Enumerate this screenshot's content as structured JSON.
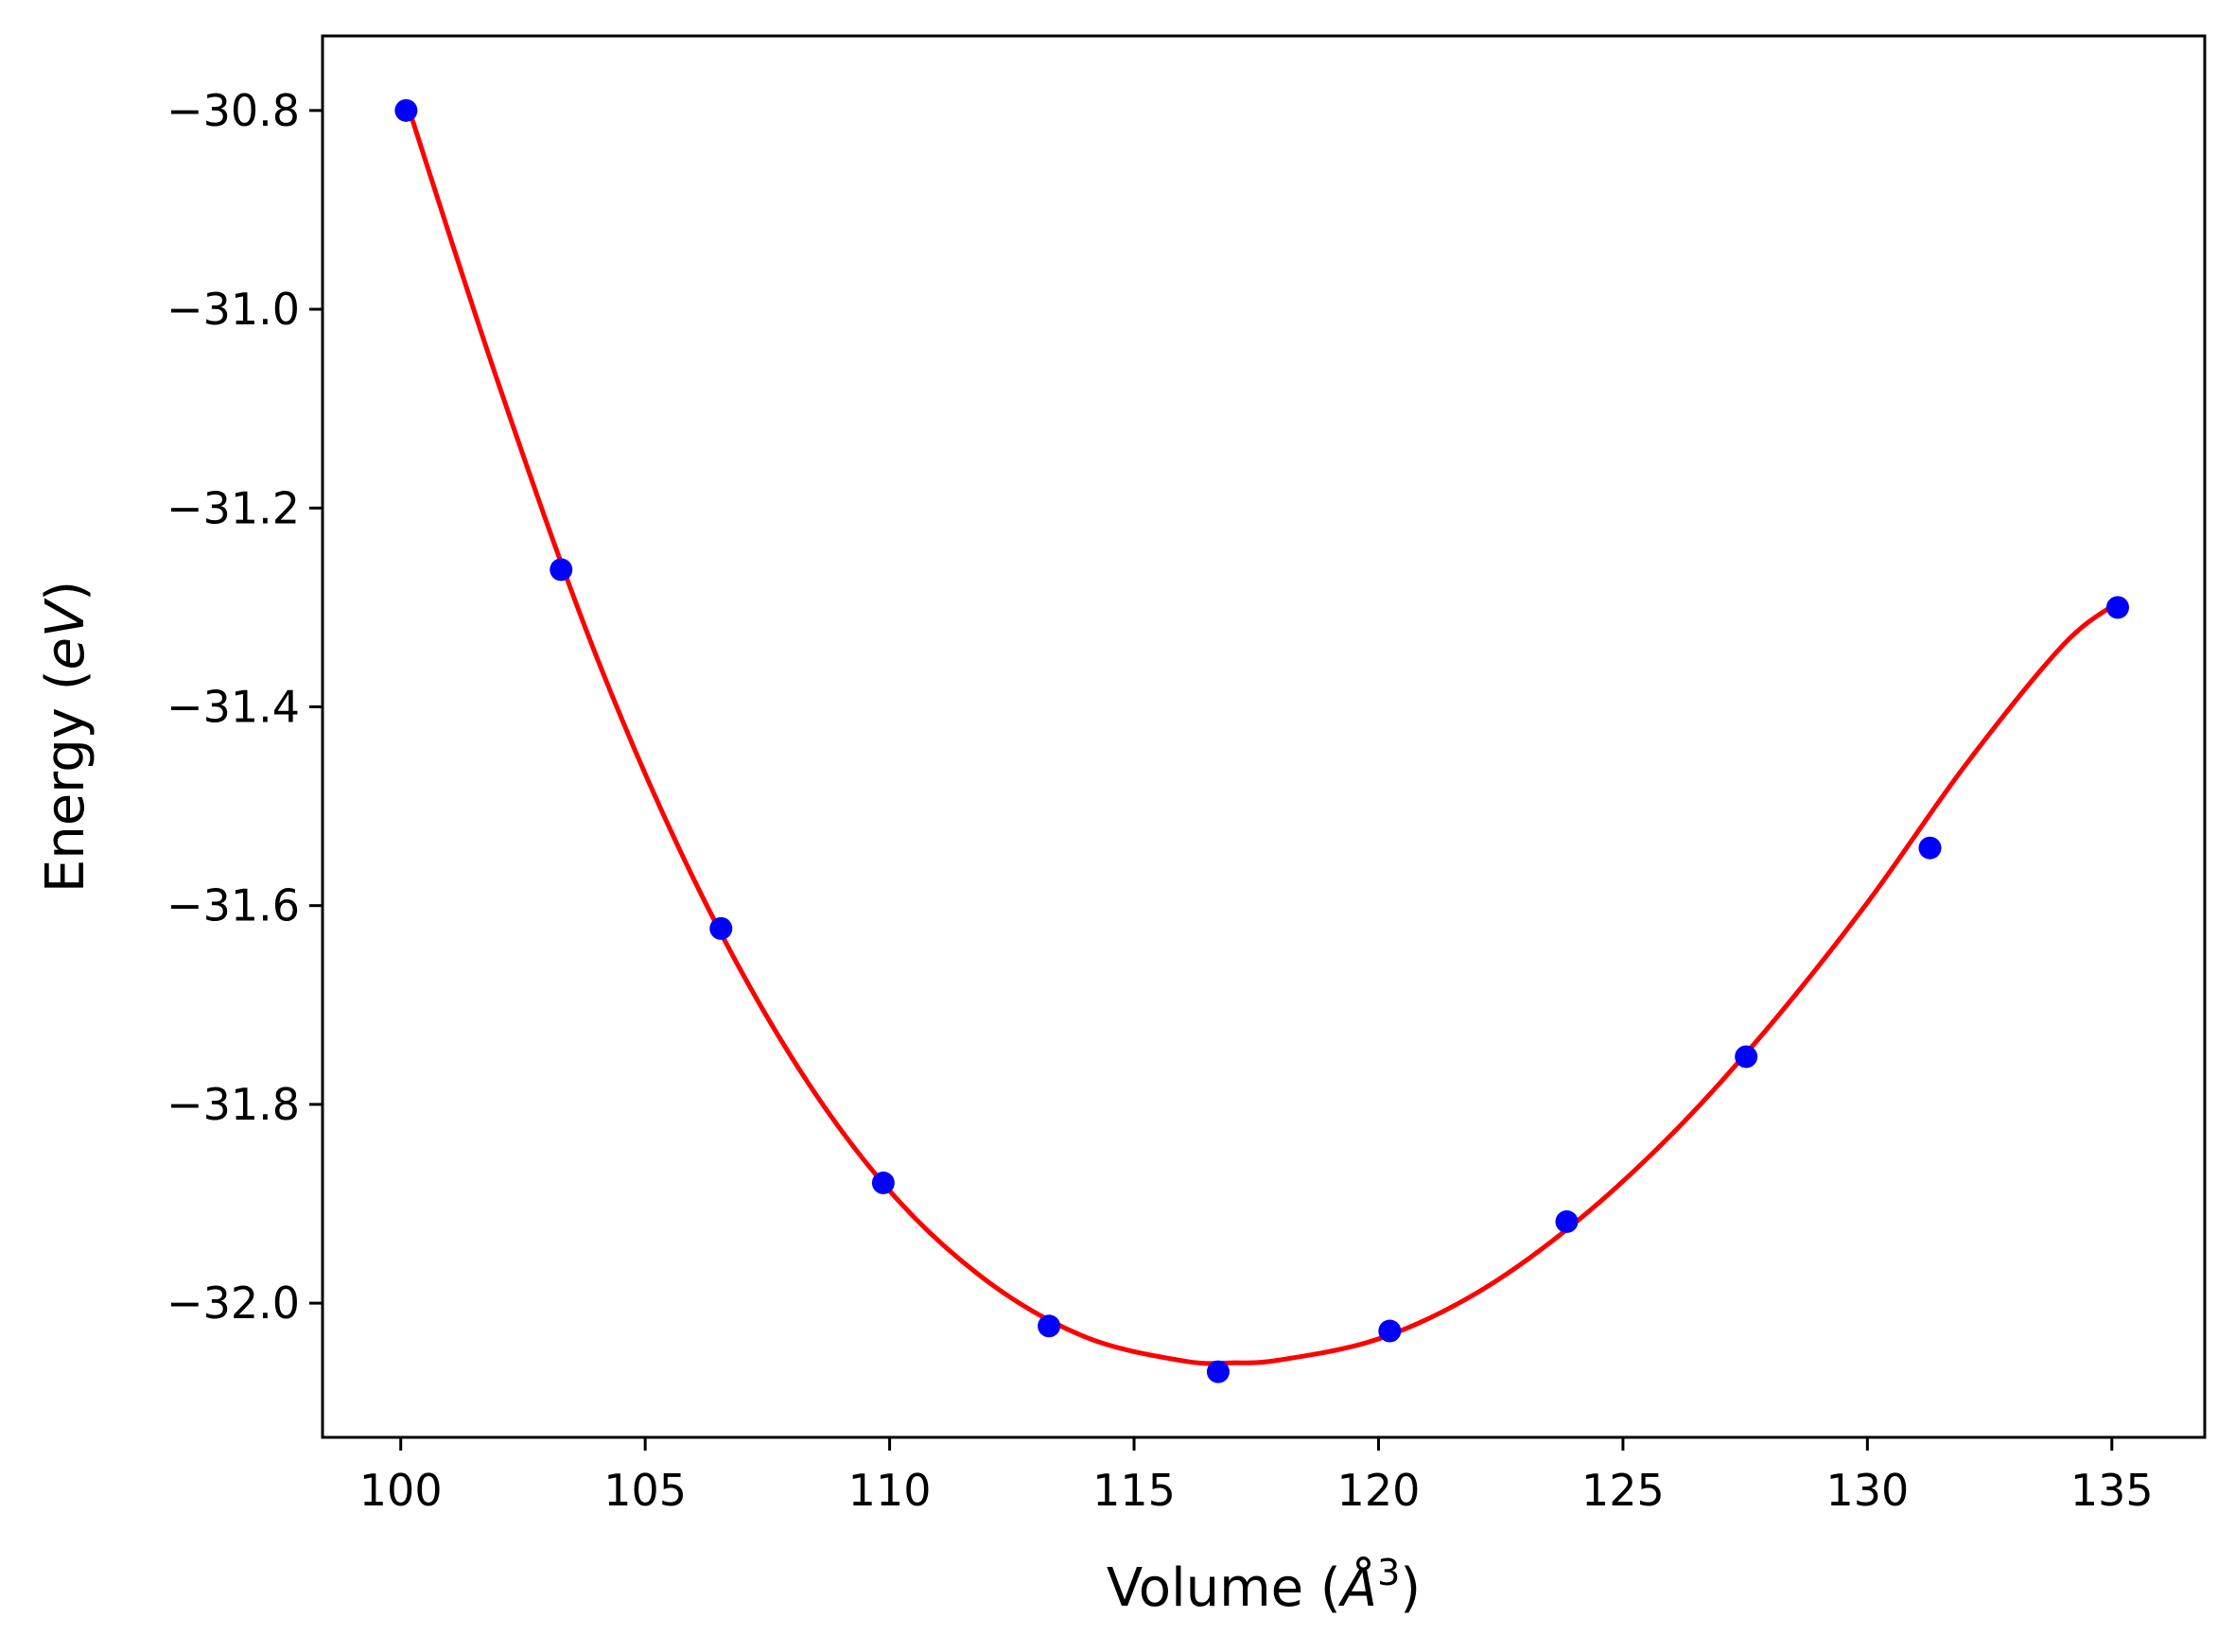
{
  "chart_data": {
    "type": "scatter",
    "title": "",
    "xlabel": "Volume (",
    "xlabel_italic": "Å",
    "xlabel_sup": "3",
    "xlabel_suffix": ")",
    "ylabel": "Energy (",
    "ylabel_italic": "eV",
    "ylabel_suffix": ")",
    "xlim": [
      98.4,
      136.9
    ],
    "ylim": [
      -32.135,
      -30.725
    ],
    "x_ticks": [
      100,
      105,
      110,
      115,
      120,
      125,
      130,
      135
    ],
    "x_tick_labels": [
      "100",
      "105",
      "110",
      "115",
      "120",
      "125",
      "130",
      "135"
    ],
    "y_ticks": [
      -30.8,
      -31.0,
      -31.2,
      -31.4,
      -31.6,
      -31.8,
      -32.0
    ],
    "y_tick_labels": [
      "−30.8",
      "−31.0",
      "−31.2",
      "−31.4",
      "−31.6",
      "−31.8",
      "−32.0"
    ],
    "grid": false,
    "legend": "none",
    "series": [
      {
        "kind": "points",
        "color": "#0000ff",
        "x": [
          100.11,
          103.28,
          106.55,
          109.87,
          113.26,
          116.72,
          120.23,
          123.85,
          127.52,
          131.28,
          135.12
        ],
        "y": [
          -30.8,
          -31.262,
          -31.623,
          -31.879,
          -32.023,
          -32.069,
          -32.028,
          -31.918,
          -31.752,
          -31.542,
          -31.3
        ]
      },
      {
        "kind": "fit-curve",
        "color": "#ff0000",
        "x": [
          100.11,
          102,
          104,
          106,
          108,
          110,
          112,
          114,
          116,
          117,
          118,
          120,
          122,
          124,
          126,
          128,
          130,
          132,
          134,
          135.12
        ],
        "y": [
          -30.79,
          -31.075,
          -31.349,
          -31.574,
          -31.753,
          -31.887,
          -31.978,
          -32.034,
          -32.058,
          -32.06,
          -32.057,
          -32.036,
          -31.99,
          -31.92,
          -31.83,
          -31.721,
          -31.597,
          -31.459,
          -31.338,
          -31.295
        ]
      }
    ]
  }
}
